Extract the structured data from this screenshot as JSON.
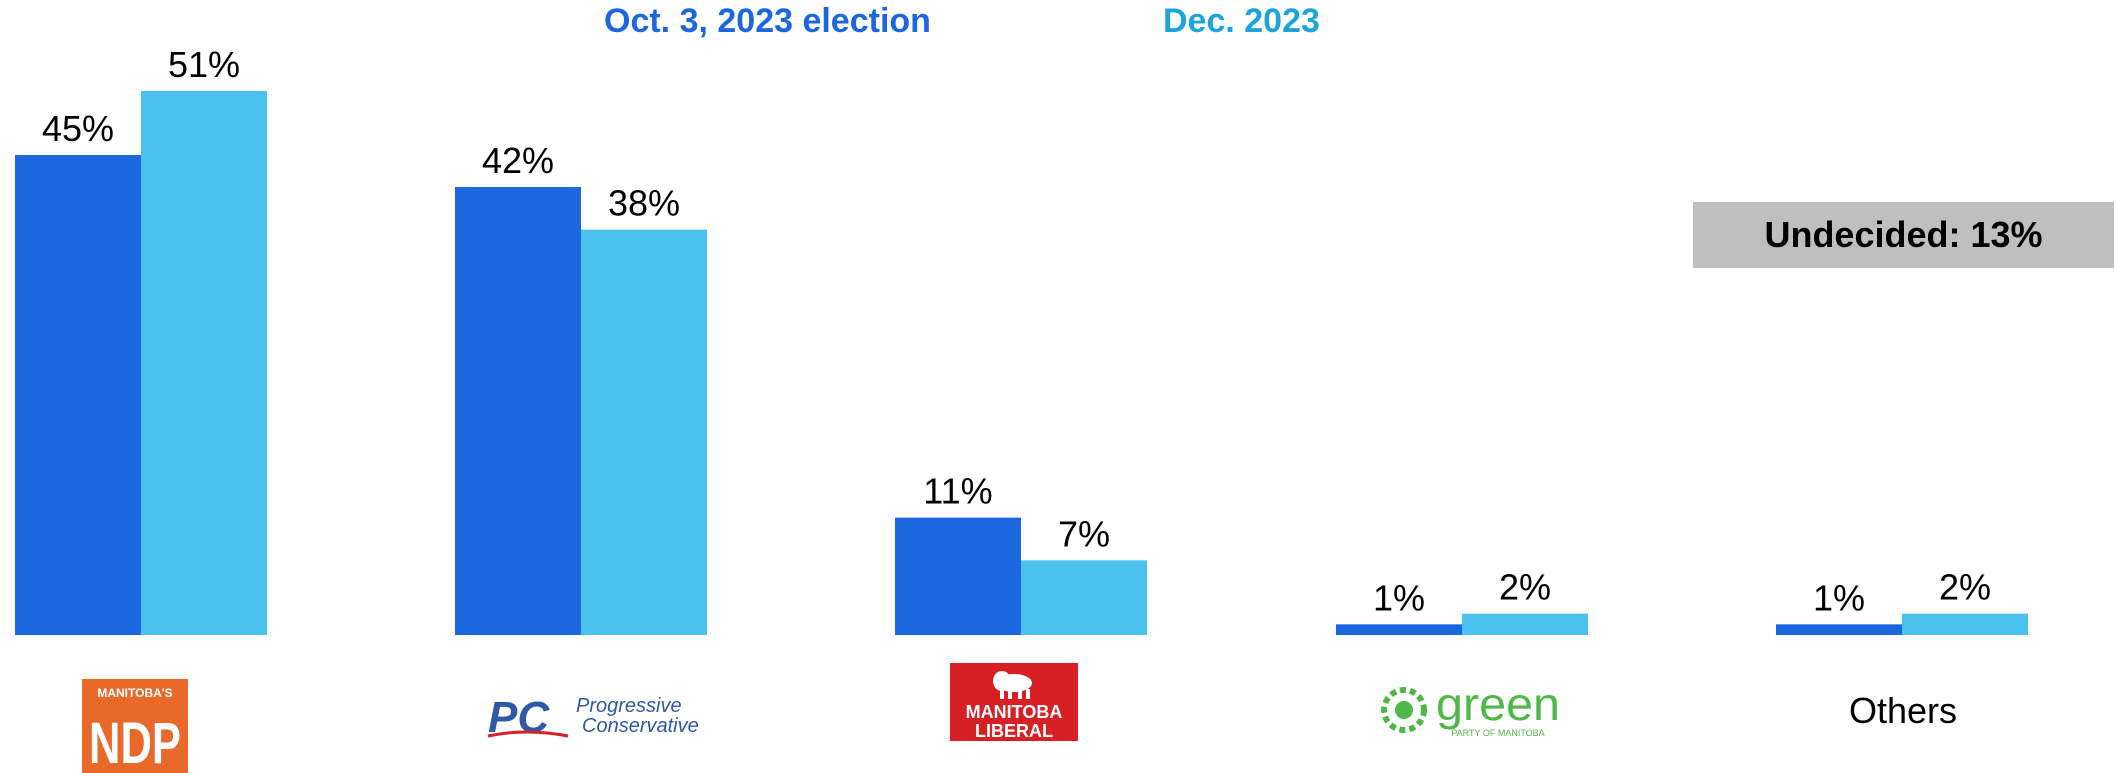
{
  "colors": {
    "series_2023_election": "#1c67e0",
    "series_dec_2023": "#4bc1ef",
    "legend_2023_election": "#1c67e0",
    "legend_dec_2023": "#1da4dc",
    "ndp_orange": "#e8692a",
    "liberal_red": "#d71f26",
    "green_party": "#4fb848",
    "pc_blue": "#2f59a6",
    "undecided_bg": "#bfbfbf"
  },
  "legend": {
    "series_1": "Oct. 3, 2023 election",
    "series_2": "Dec. 2023"
  },
  "undecided": {
    "label": "Undecided: 13%"
  },
  "logos": {
    "ndp": {
      "icon": "manitoba-ndp-logo",
      "top_text": "MANITOBA'S",
      "main_text": "NDP"
    },
    "pc": {
      "icon": "progressive-conservative-logo",
      "mark_text": "PC",
      "line_1": "Progressive",
      "line_2": "Conservative"
    },
    "liberal": {
      "icon": "manitoba-liberal-logo",
      "line_1": "MANITOBA",
      "line_2": "LIBERAL"
    },
    "green": {
      "icon": "green-party-of-manitoba-logo",
      "main_text": "green",
      "sub_text": "PARTY OF MANITOBA"
    }
  },
  "chart_data": {
    "type": "bar",
    "categories": [
      "Manitoba's NDP",
      "Progressive Conservative",
      "Manitoba Liberal",
      "Green Party of Manitoba",
      "Others"
    ],
    "series": [
      {
        "name": "Oct. 3, 2023 election",
        "values": [
          45,
          42,
          11,
          1,
          1
        ],
        "labels": [
          "45%",
          "42%",
          "11%",
          "1%",
          "1%"
        ]
      },
      {
        "name": "Dec. 2023",
        "values": [
          51,
          38,
          7,
          2,
          2
        ],
        "labels": [
          "51%",
          "38%",
          "7%",
          "2%",
          "2%"
        ]
      }
    ],
    "category_labels_text": [
      "",
      "",
      "",
      "",
      "Others"
    ],
    "ylim": [
      0,
      51
    ],
    "grid": false,
    "legend_placement": "top-center",
    "annotations": [
      "Undecided: 13%"
    ]
  }
}
